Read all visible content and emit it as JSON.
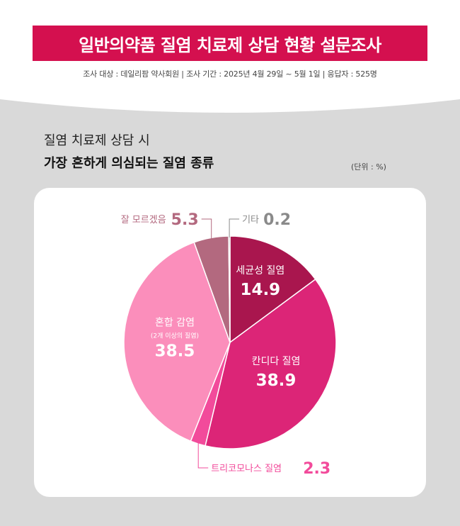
{
  "header": {
    "title": "일반의약품 질염 치료제 상담 현황 설문조사",
    "subtitle": "조사 대상 : 데일리팜 약사회원 | 조사 기간 : 2025년 4월 29일 ~ 5월 1일 | 응답자 : 525명"
  },
  "colors": {
    "brand": "#d4104f",
    "background": "#d9d9d9"
  },
  "chart_data": {
    "type": "pie",
    "title_line1": "질염 치료제 상담 시",
    "title_line2": "가장 흔하게 의심되는 질염 종류",
    "unit": "(단위 : %)",
    "slices": [
      {
        "label": "세균성 질염",
        "sublabel": "",
        "value": 14.9,
        "value_text": "14.9",
        "color": "#a9164e",
        "label_position": "inside"
      },
      {
        "label": "칸디다 질염",
        "sublabel": "",
        "value": 38.9,
        "value_text": "38.9",
        "color": "#dc2577",
        "label_position": "inside"
      },
      {
        "label": "트리코모나스 질염",
        "sublabel": "",
        "value": 2.3,
        "value_text": "2.3",
        "color": "#f24b9b",
        "label_position": "outside-bottom"
      },
      {
        "label": "혼합 감염",
        "sublabel": "(2개 이상의 질염)",
        "value": 38.5,
        "value_text": "38.5",
        "color": "#fb8ebb",
        "label_position": "inside"
      },
      {
        "label": "잘 모르겠음",
        "sublabel": "",
        "value": 5.3,
        "value_text": "5.3",
        "color": "#b3697f",
        "label_position": "outside-top-left"
      },
      {
        "label": "기타",
        "sublabel": "",
        "value": 0.2,
        "value_text": "0.2",
        "color": "#8a8a8a",
        "label_position": "outside-top-right"
      }
    ]
  }
}
